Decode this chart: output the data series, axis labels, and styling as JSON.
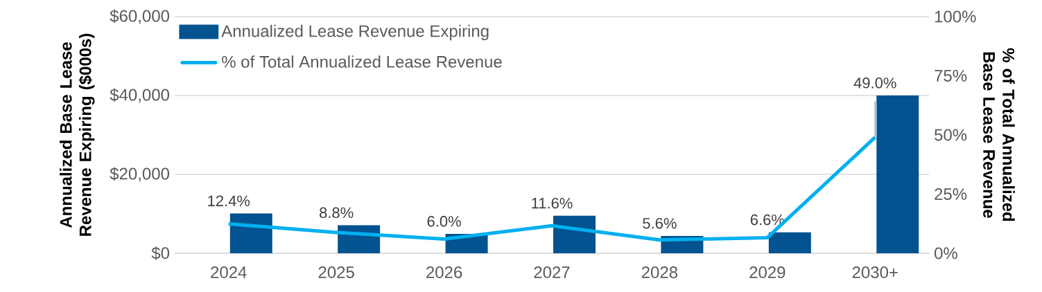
{
  "chart_data": {
    "type": "bar",
    "ylabel": "Annualized Base Lease Revenue Expiring ($000s)",
    "y2label": "% of Total Annualized Base Lease Revenue",
    "categories": [
      "2024",
      "2025",
      "2026",
      "2027",
      "2028",
      "2029",
      "2030+"
    ],
    "series": [
      {
        "name": "Annualized Lease Revenue Expiring",
        "type": "bar",
        "color": "#02538f",
        "values": [
          10100,
          7100,
          4900,
          9500,
          4400,
          5300,
          40000
        ]
      },
      {
        "name": "% of Total Annualized Lease Revenue",
        "type": "line",
        "axis": "y2",
        "color": "#00b0f0",
        "values": [
          12.4,
          8.8,
          6.0,
          11.6,
          5.6,
          6.6,
          49.0
        ],
        "value_labels": [
          "12.4%",
          "8.8%",
          "6.0%",
          "11.6%",
          "5.6%",
          "6.6%",
          "49.0%"
        ]
      }
    ],
    "ylim": [
      0,
      60000
    ],
    "yticks": [
      {
        "value": 0,
        "label": "$0"
      },
      {
        "value": 20000,
        "label": "$20,000"
      },
      {
        "value": 40000,
        "label": "$40,000"
      },
      {
        "value": 60000,
        "label": "$60,000"
      }
    ],
    "y2lim": [
      0,
      100
    ],
    "y2ticks": [
      {
        "value": 0,
        "label": "0%"
      },
      {
        "value": 25,
        "label": "25%"
      },
      {
        "value": 50,
        "label": "50%"
      },
      {
        "value": 75,
        "label": "75%"
      },
      {
        "value": 100,
        "label": "100%"
      }
    ],
    "grid": "y",
    "legend": "top left",
    "marker": "none",
    "line_style": "solid"
  }
}
